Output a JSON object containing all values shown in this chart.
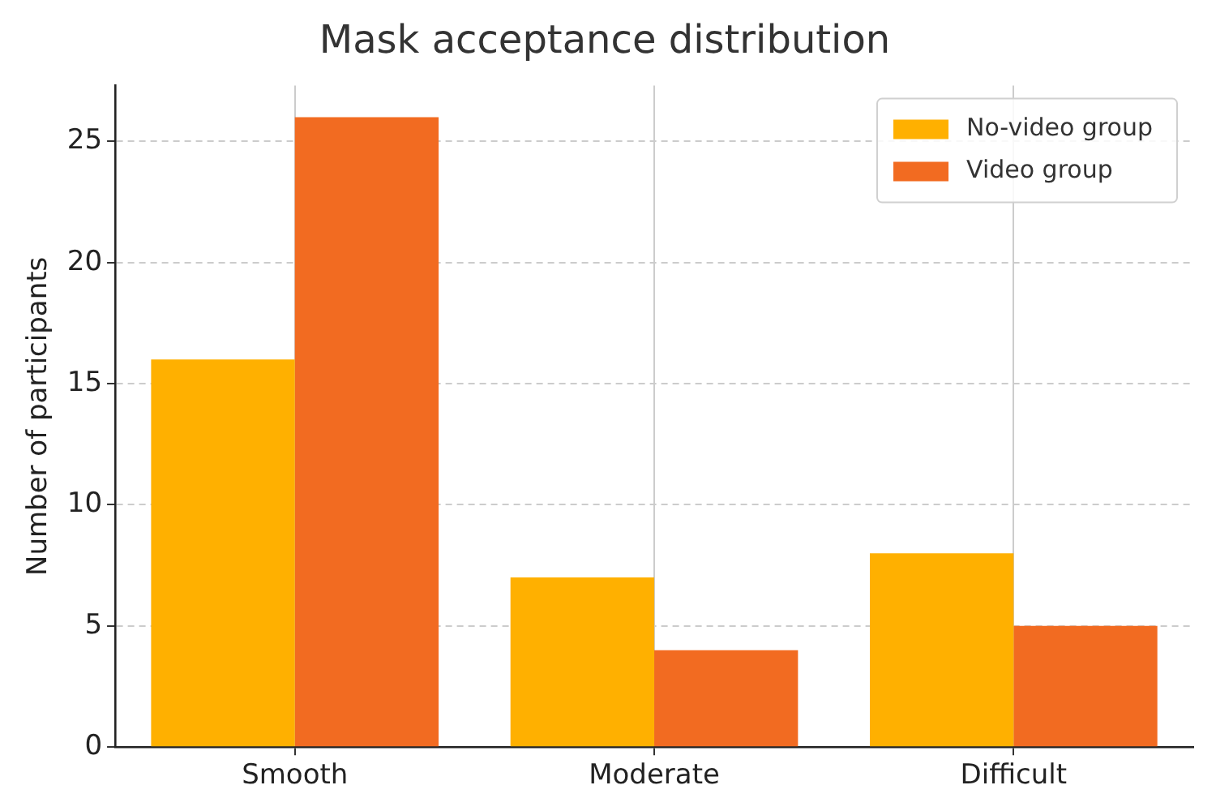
{
  "chart_data": {
    "type": "bar",
    "title": "Mask acceptance distribution",
    "ylabel": "Number of participants",
    "categories": [
      "Smooth",
      "Moderate",
      "Difficult"
    ],
    "series": [
      {
        "name": "No-video group",
        "color": "#ffb000",
        "values": [
          16,
          7,
          8
        ]
      },
      {
        "name": "Video group",
        "color": "#f26b21",
        "values": [
          26,
          4,
          5
        ]
      }
    ],
    "ylim": [
      0,
      27.3
    ],
    "yticks": [
      0,
      5,
      10,
      15,
      20,
      25
    ],
    "grid": true,
    "legend": "top right"
  }
}
